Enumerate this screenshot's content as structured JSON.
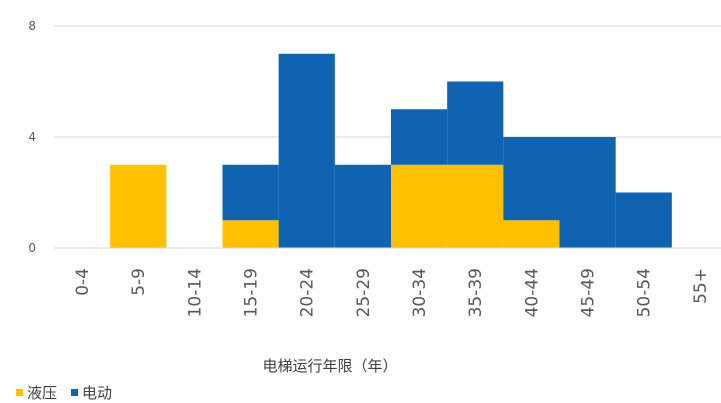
{
  "chart_data": {
    "type": "bar",
    "stacked": true,
    "categories": [
      "0-4",
      "5-9",
      "10-14",
      "15-19",
      "20-24",
      "25-29",
      "30-34",
      "35-39",
      "40-44",
      "45-49",
      "50-54",
      "55+"
    ],
    "series": [
      {
        "name": "液压",
        "color": "#FFC000",
        "values": [
          0,
          3,
          0,
          1,
          0,
          0,
          3,
          3,
          1,
          0,
          0,
          0
        ]
      },
      {
        "name": "电动",
        "color": "#0F63B0",
        "values": [
          0,
          0,
          0,
          2,
          7,
          3,
          2,
          3,
          3,
          4,
          2,
          0
        ]
      }
    ],
    "xlabel": "电梯运行年限（年）",
    "ylabel": "",
    "ylim": [
      0,
      8
    ],
    "yticks": [
      0,
      4,
      8
    ],
    "grid": true,
    "legend_position": "bottom-left"
  }
}
